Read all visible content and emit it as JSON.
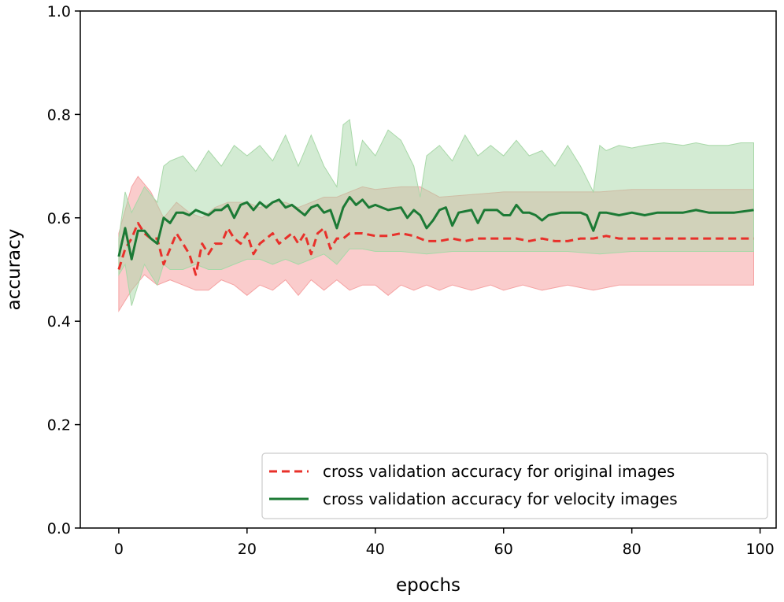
{
  "chart_data": {
    "type": "line",
    "title": "",
    "xlabel": "epochs",
    "ylabel": "accuracy",
    "xlim": [
      -6,
      102.5
    ],
    "ylim": [
      0.0,
      1.0
    ],
    "xticks": [
      0,
      20,
      40,
      60,
      80,
      100
    ],
    "yticks": [
      0.0,
      0.2,
      0.4,
      0.6,
      0.8,
      1.0
    ],
    "xtick_labels": [
      "0",
      "20",
      "40",
      "60",
      "80",
      "100"
    ],
    "ytick_labels": [
      "0.0",
      "0.2",
      "0.4",
      "0.6",
      "0.8",
      "1.0"
    ],
    "grid": false,
    "legend_position": "lower-right",
    "series": [
      {
        "name": "cross validation accuracy for original images",
        "color": "#e8302a",
        "fill": "#f5a3a3",
        "style": "dashed",
        "points": [
          [
            0,
            0.5
          ],
          [
            1,
            0.54
          ],
          [
            2,
            0.56
          ],
          [
            3,
            0.59
          ],
          [
            4,
            0.57
          ],
          [
            5,
            0.56
          ],
          [
            6,
            0.56
          ],
          [
            7,
            0.51
          ],
          [
            8,
            0.54
          ],
          [
            9,
            0.57
          ],
          [
            10,
            0.55
          ],
          [
            11,
            0.53
          ],
          [
            12,
            0.49
          ],
          [
            13,
            0.55
          ],
          [
            14,
            0.53
          ],
          [
            15,
            0.55
          ],
          [
            16,
            0.55
          ],
          [
            17,
            0.58
          ],
          [
            18,
            0.56
          ],
          [
            19,
            0.55
          ],
          [
            20,
            0.57
          ],
          [
            21,
            0.53
          ],
          [
            22,
            0.55
          ],
          [
            23,
            0.56
          ],
          [
            24,
            0.57
          ],
          [
            25,
            0.55
          ],
          [
            26,
            0.56
          ],
          [
            27,
            0.57
          ],
          [
            28,
            0.55
          ],
          [
            29,
            0.57
          ],
          [
            30,
            0.53
          ],
          [
            31,
            0.57
          ],
          [
            32,
            0.58
          ],
          [
            33,
            0.54
          ],
          [
            34,
            0.56
          ],
          [
            35,
            0.56
          ],
          [
            36,
            0.57
          ],
          [
            38,
            0.57
          ],
          [
            40,
            0.565
          ],
          [
            42,
            0.565
          ],
          [
            44,
            0.57
          ],
          [
            46,
            0.565
          ],
          [
            48,
            0.555
          ],
          [
            50,
            0.555
          ],
          [
            52,
            0.56
          ],
          [
            54,
            0.555
          ],
          [
            56,
            0.56
          ],
          [
            58,
            0.56
          ],
          [
            60,
            0.56
          ],
          [
            62,
            0.56
          ],
          [
            64,
            0.555
          ],
          [
            66,
            0.56
          ],
          [
            68,
            0.555
          ],
          [
            70,
            0.555
          ],
          [
            72,
            0.56
          ],
          [
            74,
            0.56
          ],
          [
            76,
            0.565
          ],
          [
            78,
            0.56
          ],
          [
            80,
            0.56
          ],
          [
            82,
            0.56
          ],
          [
            84,
            0.56
          ],
          [
            86,
            0.56
          ],
          [
            88,
            0.56
          ],
          [
            90,
            0.56
          ],
          [
            92,
            0.56
          ],
          [
            94,
            0.56
          ],
          [
            96,
            0.56
          ],
          [
            99,
            0.56
          ]
        ],
        "upper": [
          [
            0,
            0.57
          ],
          [
            2,
            0.66
          ],
          [
            3,
            0.68
          ],
          [
            5,
            0.65
          ],
          [
            7,
            0.6
          ],
          [
            9,
            0.63
          ],
          [
            11,
            0.61
          ],
          [
            13,
            0.6
          ],
          [
            15,
            0.62
          ],
          [
            17,
            0.63
          ],
          [
            20,
            0.63
          ],
          [
            22,
            0.62
          ],
          [
            24,
            0.63
          ],
          [
            26,
            0.63
          ],
          [
            28,
            0.62
          ],
          [
            30,
            0.63
          ],
          [
            32,
            0.64
          ],
          [
            34,
            0.64
          ],
          [
            36,
            0.65
          ],
          [
            38,
            0.66
          ],
          [
            40,
            0.655
          ],
          [
            44,
            0.66
          ],
          [
            47,
            0.66
          ],
          [
            50,
            0.64
          ],
          [
            55,
            0.645
          ],
          [
            60,
            0.65
          ],
          [
            65,
            0.65
          ],
          [
            70,
            0.65
          ],
          [
            75,
            0.65
          ],
          [
            80,
            0.655
          ],
          [
            85,
            0.655
          ],
          [
            90,
            0.655
          ],
          [
            95,
            0.655
          ],
          [
            99,
            0.655
          ]
        ],
        "lower": [
          [
            0,
            0.42
          ],
          [
            2,
            0.46
          ],
          [
            4,
            0.49
          ],
          [
            6,
            0.47
          ],
          [
            8,
            0.48
          ],
          [
            10,
            0.47
          ],
          [
            12,
            0.46
          ],
          [
            14,
            0.46
          ],
          [
            16,
            0.48
          ],
          [
            18,
            0.47
          ],
          [
            20,
            0.45
          ],
          [
            22,
            0.47
          ],
          [
            24,
            0.46
          ],
          [
            26,
            0.48
          ],
          [
            28,
            0.45
          ],
          [
            30,
            0.48
          ],
          [
            32,
            0.46
          ],
          [
            34,
            0.48
          ],
          [
            36,
            0.46
          ],
          [
            38,
            0.47
          ],
          [
            40,
            0.47
          ],
          [
            42,
            0.45
          ],
          [
            44,
            0.47
          ],
          [
            46,
            0.46
          ],
          [
            48,
            0.47
          ],
          [
            50,
            0.46
          ],
          [
            52,
            0.47
          ],
          [
            55,
            0.46
          ],
          [
            58,
            0.47
          ],
          [
            60,
            0.46
          ],
          [
            63,
            0.47
          ],
          [
            66,
            0.46
          ],
          [
            70,
            0.47
          ],
          [
            74,
            0.46
          ],
          [
            78,
            0.47
          ],
          [
            82,
            0.47
          ],
          [
            86,
            0.47
          ],
          [
            90,
            0.47
          ],
          [
            94,
            0.47
          ],
          [
            99,
            0.47
          ]
        ]
      },
      {
        "name": "cross validation accuracy for velocity images",
        "color": "#1c7a35",
        "fill": "#a8d8a8",
        "style": "solid",
        "points": [
          [
            0,
            0.525
          ],
          [
            1,
            0.58
          ],
          [
            2,
            0.52
          ],
          [
            3,
            0.575
          ],
          [
            4,
            0.575
          ],
          [
            5,
            0.56
          ],
          [
            6,
            0.55
          ],
          [
            7,
            0.6
          ],
          [
            8,
            0.59
          ],
          [
            9,
            0.61
          ],
          [
            10,
            0.61
          ],
          [
            11,
            0.605
          ],
          [
            12,
            0.615
          ],
          [
            13,
            0.61
          ],
          [
            14,
            0.605
          ],
          [
            15,
            0.615
          ],
          [
            16,
            0.615
          ],
          [
            17,
            0.625
          ],
          [
            18,
            0.6
          ],
          [
            19,
            0.625
          ],
          [
            20,
            0.63
          ],
          [
            21,
            0.615
          ],
          [
            22,
            0.63
          ],
          [
            23,
            0.62
          ],
          [
            24,
            0.63
          ],
          [
            25,
            0.635
          ],
          [
            26,
            0.62
          ],
          [
            27,
            0.625
          ],
          [
            28,
            0.615
          ],
          [
            29,
            0.605
          ],
          [
            30,
            0.62
          ],
          [
            31,
            0.625
          ],
          [
            32,
            0.61
          ],
          [
            33,
            0.615
          ],
          [
            34,
            0.58
          ],
          [
            35,
            0.62
          ],
          [
            36,
            0.64
          ],
          [
            37,
            0.625
          ],
          [
            38,
            0.635
          ],
          [
            39,
            0.62
          ],
          [
            40,
            0.625
          ],
          [
            42,
            0.615
          ],
          [
            44,
            0.62
          ],
          [
            45,
            0.6
          ],
          [
            46,
            0.615
          ],
          [
            47,
            0.605
          ],
          [
            48,
            0.58
          ],
          [
            49,
            0.595
          ],
          [
            50,
            0.615
          ],
          [
            51,
            0.62
          ],
          [
            52,
            0.585
          ],
          [
            53,
            0.61
          ],
          [
            55,
            0.615
          ],
          [
            56,
            0.59
          ],
          [
            57,
            0.615
          ],
          [
            59,
            0.615
          ],
          [
            60,
            0.605
          ],
          [
            61,
            0.605
          ],
          [
            62,
            0.625
          ],
          [
            63,
            0.61
          ],
          [
            64,
            0.61
          ],
          [
            65,
            0.605
          ],
          [
            66,
            0.595
          ],
          [
            67,
            0.605
          ],
          [
            69,
            0.61
          ],
          [
            71,
            0.61
          ],
          [
            72,
            0.61
          ],
          [
            73,
            0.605
          ],
          [
            74,
            0.575
          ],
          [
            75,
            0.61
          ],
          [
            76,
            0.61
          ],
          [
            78,
            0.605
          ],
          [
            80,
            0.61
          ],
          [
            82,
            0.605
          ],
          [
            84,
            0.61
          ],
          [
            86,
            0.61
          ],
          [
            88,
            0.61
          ],
          [
            90,
            0.615
          ],
          [
            92,
            0.61
          ],
          [
            94,
            0.61
          ],
          [
            96,
            0.61
          ],
          [
            99,
            0.615
          ]
        ],
        "upper": [
          [
            0,
            0.56
          ],
          [
            1,
            0.65
          ],
          [
            2,
            0.61
          ],
          [
            4,
            0.66
          ],
          [
            6,
            0.63
          ],
          [
            7,
            0.7
          ],
          [
            8,
            0.71
          ],
          [
            10,
            0.72
          ],
          [
            12,
            0.69
          ],
          [
            14,
            0.73
          ],
          [
            16,
            0.7
          ],
          [
            18,
            0.74
          ],
          [
            20,
            0.72
          ],
          [
            22,
            0.74
          ],
          [
            24,
            0.71
          ],
          [
            26,
            0.76
          ],
          [
            28,
            0.7
          ],
          [
            30,
            0.76
          ],
          [
            32,
            0.7
          ],
          [
            34,
            0.66
          ],
          [
            35,
            0.78
          ],
          [
            36,
            0.79
          ],
          [
            37,
            0.7
          ],
          [
            38,
            0.75
          ],
          [
            40,
            0.72
          ],
          [
            42,
            0.77
          ],
          [
            44,
            0.75
          ],
          [
            46,
            0.7
          ],
          [
            47,
            0.64
          ],
          [
            48,
            0.72
          ],
          [
            50,
            0.74
          ],
          [
            52,
            0.71
          ],
          [
            54,
            0.76
          ],
          [
            56,
            0.72
          ],
          [
            58,
            0.74
          ],
          [
            60,
            0.72
          ],
          [
            62,
            0.75
          ],
          [
            64,
            0.72
          ],
          [
            66,
            0.73
          ],
          [
            68,
            0.7
          ],
          [
            70,
            0.74
          ],
          [
            72,
            0.7
          ],
          [
            74,
            0.65
          ],
          [
            75,
            0.74
          ],
          [
            76,
            0.73
          ],
          [
            78,
            0.74
          ],
          [
            80,
            0.735
          ],
          [
            82,
            0.74
          ],
          [
            85,
            0.745
          ],
          [
            88,
            0.74
          ],
          [
            90,
            0.745
          ],
          [
            92,
            0.74
          ],
          [
            95,
            0.74
          ],
          [
            97,
            0.745
          ],
          [
            99,
            0.745
          ]
        ],
        "lower": [
          [
            0,
            0.49
          ],
          [
            1,
            0.51
          ],
          [
            2,
            0.43
          ],
          [
            4,
            0.51
          ],
          [
            6,
            0.47
          ],
          [
            7,
            0.51
          ],
          [
            8,
            0.5
          ],
          [
            10,
            0.5
          ],
          [
            12,
            0.51
          ],
          [
            14,
            0.5
          ],
          [
            16,
            0.5
          ],
          [
            18,
            0.51
          ],
          [
            20,
            0.52
          ],
          [
            22,
            0.52
          ],
          [
            24,
            0.51
          ],
          [
            26,
            0.52
          ],
          [
            28,
            0.51
          ],
          [
            30,
            0.52
          ],
          [
            32,
            0.53
          ],
          [
            34,
            0.51
          ],
          [
            36,
            0.54
          ],
          [
            38,
            0.54
          ],
          [
            40,
            0.535
          ],
          [
            44,
            0.535
          ],
          [
            48,
            0.53
          ],
          [
            52,
            0.535
          ],
          [
            56,
            0.535
          ],
          [
            60,
            0.535
          ],
          [
            65,
            0.535
          ],
          [
            70,
            0.535
          ],
          [
            75,
            0.53
          ],
          [
            80,
            0.535
          ],
          [
            85,
            0.535
          ],
          [
            90,
            0.535
          ],
          [
            95,
            0.535
          ],
          [
            99,
            0.535
          ]
        ]
      }
    ]
  }
}
